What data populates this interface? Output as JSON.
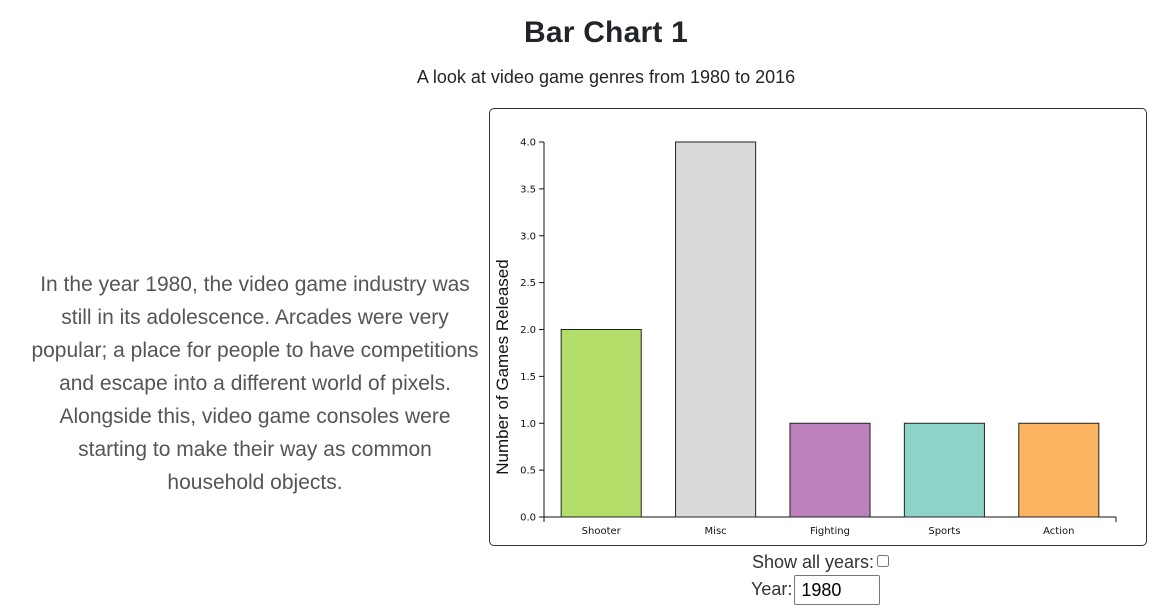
{
  "page": {
    "title": "Bar Chart 1",
    "subtitle": "A look at video game genres from 1980 to 2016",
    "description": "In the year 1980, the video game industry was still in its adolescence. Arcades were very popular; a place for people to have competitions and escape into a different world of pixels. Alongside this, video game consoles were starting to make their way as common household objects."
  },
  "controls": {
    "show_all_label": "Show all years:",
    "show_all_checked": false,
    "year_label": "Year:",
    "year_value": "1980"
  },
  "chart_data": {
    "type": "bar",
    "categories": [
      "Shooter",
      "Misc",
      "Fighting",
      "Sports",
      "Action"
    ],
    "values": [
      2,
      4,
      1,
      1,
      1
    ],
    "colors": [
      "#b3de69",
      "#d9d9d9",
      "#bc80bd",
      "#8dd3c7",
      "#fdb462"
    ],
    "title": "",
    "xlabel": "",
    "ylabel": "Number of Games Released",
    "ylim": [
      0,
      4
    ],
    "yticks": [
      0.0,
      0.5,
      1.0,
      1.5,
      2.0,
      2.5,
      3.0,
      3.5,
      4.0
    ],
    "ytick_labels": [
      "0.0",
      "0.5",
      "1.0",
      "1.5",
      "2.0",
      "2.5",
      "3.0",
      "3.5",
      "4.0"
    ],
    "grid": false,
    "legend": "none"
  }
}
